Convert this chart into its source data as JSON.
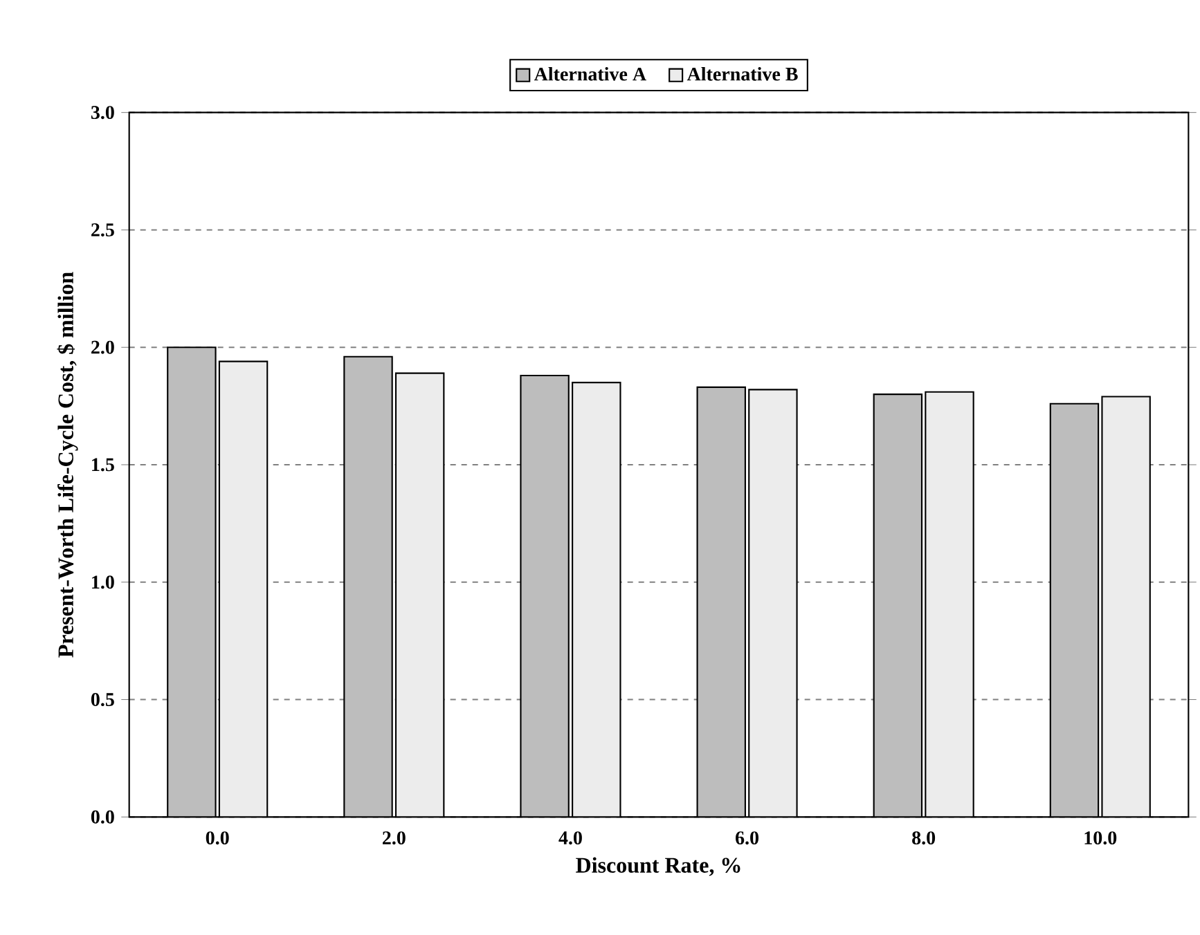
{
  "chart_data": {
    "type": "bar",
    "xlabel": "Discount Rate, %",
    "ylabel": "Present-Worth Life-Cycle Cost, $ million",
    "categories": [
      "0.0",
      "2.0",
      "4.0",
      "6.0",
      "8.0",
      "10.0"
    ],
    "series": [
      {
        "name": "Alternative A",
        "color": "#bdbdbd",
        "values": [
          2.0,
          1.96,
          1.88,
          1.83,
          1.8,
          1.76
        ]
      },
      {
        "name": "Alternative B",
        "color": "#ececec",
        "values": [
          1.94,
          1.89,
          1.85,
          1.82,
          1.81,
          1.79
        ]
      }
    ],
    "ylim": [
      0,
      3
    ],
    "yticks": [
      {
        "value": 0,
        "label": "0.0"
      },
      {
        "value": 0.5,
        "label": "0.5"
      },
      {
        "value": 1,
        "label": "1.0"
      },
      {
        "value": 1.5,
        "label": "1.5"
      },
      {
        "value": 2,
        "label": "2.0"
      },
      {
        "value": 2.5,
        "label": "2.5"
      },
      {
        "value": 3,
        "label": "3.0"
      }
    ],
    "grid": "y",
    "legend": "top"
  }
}
